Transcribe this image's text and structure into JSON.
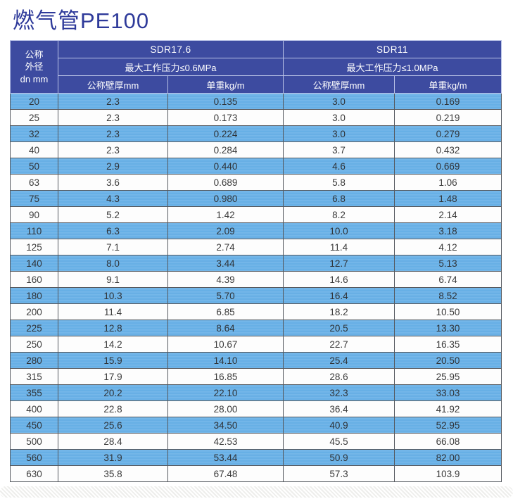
{
  "page": {
    "title": "燃气管PE100"
  },
  "colors": {
    "title_text": "#2e3a9a",
    "header_bg": "#3d4ba0",
    "header_text": "#ffffff",
    "row_blue": "#68b1e8",
    "row_white": "#fdfdfd",
    "border_dark": "#55595f"
  },
  "chart_data": {
    "type": "table",
    "title": "燃气管PE100",
    "header": {
      "diameter_label_lines": [
        "公称",
        "外径",
        "dn mm"
      ],
      "groups": [
        {
          "name": "SDR17.6",
          "pressure": "最大工作压力≤0.6MPa",
          "columns": [
            "公称壁厚mm",
            "单重kg/m"
          ]
        },
        {
          "name": "SDR11",
          "pressure": "最大工作压力≤1.0MPa",
          "columns": [
            "公称壁厚mm",
            "单重kg/m"
          ]
        }
      ]
    },
    "rows": [
      [
        "20",
        "2.3",
        "0.135",
        "3.0",
        "0.169"
      ],
      [
        "25",
        "2.3",
        "0.173",
        "3.0",
        "0.219"
      ],
      [
        "32",
        "2.3",
        "0.224",
        "3.0",
        "0.279"
      ],
      [
        "40",
        "2.3",
        "0.284",
        "3.7",
        "0.432"
      ],
      [
        "50",
        "2.9",
        "0.440",
        "4.6",
        "0.669"
      ],
      [
        "63",
        "3.6",
        "0.689",
        "5.8",
        "1.06"
      ],
      [
        "75",
        "4.3",
        "0.980",
        "6.8",
        "1.48"
      ],
      [
        "90",
        "5.2",
        "1.42",
        "8.2",
        "2.14"
      ],
      [
        "110",
        "6.3",
        "2.09",
        "10.0",
        "3.18"
      ],
      [
        "125",
        "7.1",
        "2.74",
        "11.4",
        "4.12"
      ],
      [
        "140",
        "8.0",
        "3.44",
        "12.7",
        "5.13"
      ],
      [
        "160",
        "9.1",
        "4.39",
        "14.6",
        "6.74"
      ],
      [
        "180",
        "10.3",
        "5.70",
        "16.4",
        "8.52"
      ],
      [
        "200",
        "11.4",
        "6.85",
        "18.2",
        "10.50"
      ],
      [
        "225",
        "12.8",
        "8.64",
        "20.5",
        "13.30"
      ],
      [
        "250",
        "14.2",
        "10.67",
        "22.7",
        "16.35"
      ],
      [
        "280",
        "15.9",
        "14.10",
        "25.4",
        "20.50"
      ],
      [
        "315",
        "17.9",
        "16.85",
        "28.6",
        "25.95"
      ],
      [
        "355",
        "20.2",
        "22.10",
        "32.3",
        "33.03"
      ],
      [
        "400",
        "22.8",
        "28.00",
        "36.4",
        "41.92"
      ],
      [
        "450",
        "25.6",
        "34.50",
        "40.9",
        "52.95"
      ],
      [
        "500",
        "28.4",
        "42.53",
        "45.5",
        "66.08"
      ],
      [
        "560",
        "31.9",
        "53.44",
        "50.9",
        "82.00"
      ],
      [
        "630",
        "35.8",
        "67.48",
        "57.3",
        "103.9"
      ]
    ]
  }
}
